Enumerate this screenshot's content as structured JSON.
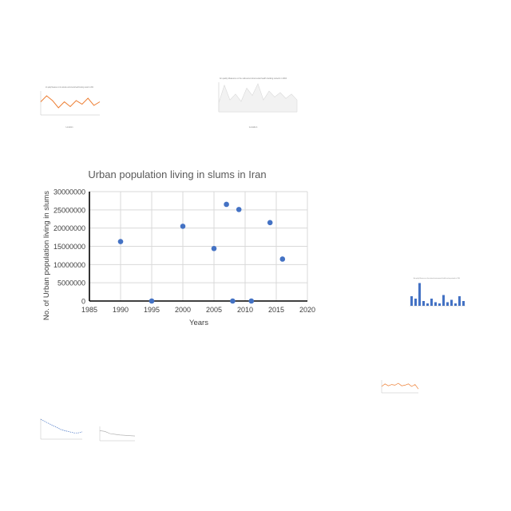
{
  "chart_data": [
    {
      "type": "scatter",
      "title": "Urban population living in slums in Iran",
      "xlabel": "Years",
      "ylabel": "No. of Urban population living in slums",
      "xlim": [
        1985,
        2020
      ],
      "ylim": [
        0,
        30000000
      ],
      "xticks": [
        1985,
        1990,
        1995,
        2000,
        2005,
        2010,
        2015,
        2020
      ],
      "yticks": [
        "0",
        "5000000",
        "10000000",
        "15000000",
        "20000000",
        "25000000",
        "30000000"
      ],
      "grid": true,
      "color": "#4472c4",
      "points": [
        {
          "x": 1990,
          "y": 16300000
        },
        {
          "x": 1995,
          "y": 0
        },
        {
          "x": 2000,
          "y": 20500000
        },
        {
          "x": 2005,
          "y": 14400000
        },
        {
          "x": 2007,
          "y": 26500000
        },
        {
          "x": 2008,
          "y": 0
        },
        {
          "x": 2009,
          "y": 25100000
        },
        {
          "x": 2011,
          "y": 0
        },
        {
          "x": 2014,
          "y": 21500000
        },
        {
          "x": 2016,
          "y": 11500000
        }
      ]
    },
    {
      "type": "line",
      "title": "Air quality Measures on the national environmental health tracking network in 2004",
      "xlabel": "Location",
      "color": "#ed7d31",
      "values": [
        55,
        80,
        60,
        30,
        55,
        35,
        60,
        45,
        70,
        40,
        55
      ]
    },
    {
      "type": "area",
      "title": "Air quality Measures on the national environmental health tracking network in 2004",
      "xlabel": "Location",
      "color": "#d9d9d9",
      "values": [
        30,
        90,
        40,
        60,
        35,
        80,
        55,
        95,
        40,
        70,
        50,
        65,
        45,
        60,
        40
      ]
    },
    {
      "type": "bar",
      "title": "Air quality Measures on the national environmental health tracking network in 2004",
      "color": "#4472c4",
      "values": [
        40,
        30,
        95,
        20,
        10,
        30,
        15,
        10,
        45,
        15,
        25,
        10,
        40,
        20
      ]
    },
    {
      "type": "line",
      "color": "#ed7d31",
      "values": [
        50,
        70,
        55,
        65,
        60,
        75,
        55,
        60,
        70,
        50,
        65,
        30
      ]
    },
    {
      "type": "line",
      "color": "#4472c4",
      "values": [
        95,
        85,
        75,
        65,
        55,
        45,
        40,
        35,
        30,
        30,
        35
      ]
    },
    {
      "type": "line",
      "color": "#a6a6a6",
      "values": [
        70,
        65,
        50,
        45,
        40,
        38,
        35,
        33
      ]
    }
  ]
}
